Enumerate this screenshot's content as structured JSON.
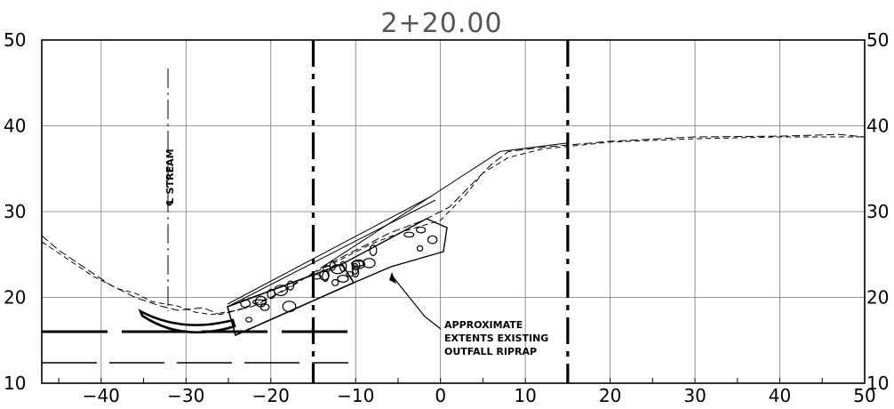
{
  "section_title": "2+20.00",
  "x_ticks": [
    -40,
    -30,
    -20,
    -10,
    0,
    10,
    20,
    30,
    40,
    50
  ],
  "y_ticks": [
    10,
    20,
    30,
    40,
    50
  ],
  "x_range": [
    -47,
    50
  ],
  "y_range": [
    10,
    50
  ],
  "stream_label": "℄ STREAM",
  "stream_offset": -31.5,
  "riprap_note": [
    "APPROXIMATE",
    "EXTENTS EXISTING",
    "OUTFALL RIPRAP"
  ],
  "vertical_limits": [
    -15,
    15
  ],
  "ground_existing": [
    [
      -47,
      27.2
    ],
    [
      -45,
      25.5
    ],
    [
      -42,
      23.5
    ],
    [
      -39,
      21.5
    ],
    [
      -36,
      20
    ],
    [
      -33,
      19
    ],
    [
      -31,
      18.5
    ],
    [
      -28,
      18.8
    ],
    [
      -26,
      18
    ],
    [
      -22,
      19
    ],
    [
      -18,
      21
    ],
    [
      -14,
      23.5
    ],
    [
      -10,
      25.5
    ],
    [
      -6,
      27.5
    ],
    [
      -2,
      29
    ],
    [
      1,
      30.5
    ],
    [
      4,
      33.5
    ],
    [
      6,
      35.5
    ],
    [
      8,
      37
    ],
    [
      12,
      37.5
    ],
    [
      20,
      38.2
    ],
    [
      30,
      38.7
    ],
    [
      40,
      38.8
    ],
    [
      47,
      39
    ],
    [
      50,
      38.7
    ]
  ],
  "ground_alt": [
    [
      -47,
      26.5
    ],
    [
      -44,
      24.5
    ],
    [
      -41,
      22.5
    ],
    [
      -38,
      21
    ],
    [
      -36,
      20.5
    ],
    [
      -34,
      19.5
    ],
    [
      -31,
      19
    ],
    [
      -29,
      18.3
    ],
    [
      -27,
      18
    ],
    [
      -24,
      18.5
    ],
    [
      -20,
      20
    ],
    [
      -16,
      22.3
    ],
    [
      -12,
      24.3
    ],
    [
      -8,
      26.3
    ],
    [
      -4,
      27.8
    ],
    [
      0,
      29
    ],
    [
      3,
      32
    ],
    [
      5,
      34.5
    ],
    [
      8,
      36.3
    ],
    [
      12,
      37.3
    ],
    [
      20,
      38.1
    ],
    [
      30,
      38.5
    ],
    [
      40,
      38.7
    ],
    [
      50,
      38.7
    ]
  ],
  "upper_slope": [
    [
      -14,
      23.5
    ],
    [
      7,
      37
    ]
  ],
  "cap_top": [
    [
      7,
      37
    ],
    [
      15,
      38
    ]
  ]
}
